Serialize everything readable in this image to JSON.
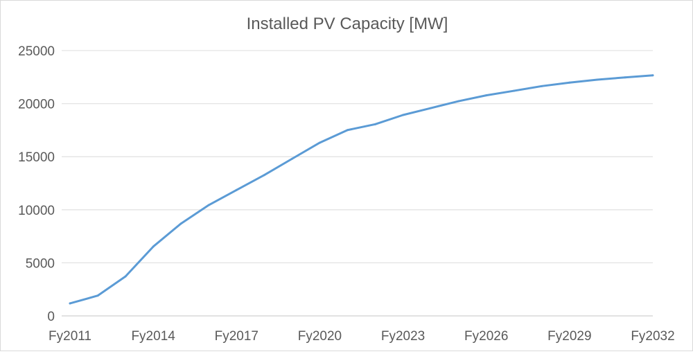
{
  "chart_data": {
    "type": "line",
    "title": "Installed PV Capacity [MW]",
    "xlabel": "",
    "ylabel": "",
    "ylim": [
      0,
      25000
    ],
    "yticks": [
      "0",
      "5000",
      "10000",
      "15000",
      "20000",
      "25000"
    ],
    "ytick_values": [
      0,
      5000,
      10000,
      15000,
      20000,
      25000
    ],
    "x": [
      "Fy2011",
      "Fy2012",
      "Fy2013",
      "Fy2014",
      "Fy2015",
      "Fy2016",
      "Fy2017",
      "Fy2018",
      "Fy2019",
      "Fy2020",
      "Fy2021",
      "Fy2022",
      "Fy2023",
      "Fy2024",
      "Fy2025",
      "Fy2026",
      "Fy2027",
      "Fy2028",
      "Fy2029",
      "Fy2030",
      "Fy2031",
      "Fy2032"
    ],
    "xtick_labels": [
      "Fy2011",
      "Fy2014",
      "Fy2017",
      "Fy2020",
      "Fy2023",
      "Fy2026",
      "Fy2029",
      "Fy2032"
    ],
    "grid": true,
    "legend": "none",
    "series": [
      {
        "name": "Installed PV Capacity",
        "color": "#5b9bd5",
        "values": [
          1180,
          1910,
          3720,
          6530,
          8700,
          10440,
          11860,
          13270,
          14800,
          16320,
          17510,
          18060,
          18930,
          19580,
          20230,
          20780,
          21210,
          21650,
          21980,
          22260,
          22470,
          22670
        ]
      }
    ]
  }
}
